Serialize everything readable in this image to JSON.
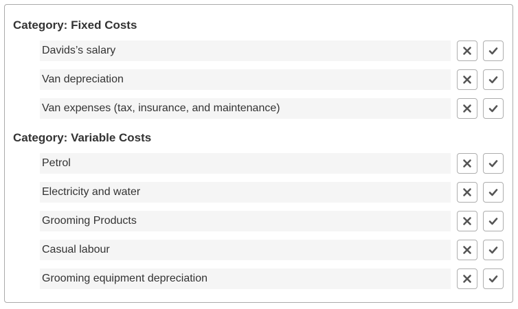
{
  "categories": [
    {
      "title": "Category: Fixed Costs",
      "items": [
        {
          "label": "Davids’s salary"
        },
        {
          "label": "Van depreciation"
        },
        {
          "label": "Van expenses (tax, insurance, and maintenance)"
        }
      ]
    },
    {
      "title": "Category: Variable Costs",
      "items": [
        {
          "label": "Petrol"
        },
        {
          "label": "Electricity and water"
        },
        {
          "label": "Grooming Products"
        },
        {
          "label": "Casual labour"
        },
        {
          "label": "Grooming equipment depreciation"
        }
      ]
    }
  ],
  "icons": {
    "reject": "close-icon",
    "accept": "check-icon"
  },
  "colors": {
    "icon": "#555555",
    "row_background": "#f5f5f5",
    "border": "#aaaaaa",
    "text": "#333333"
  }
}
